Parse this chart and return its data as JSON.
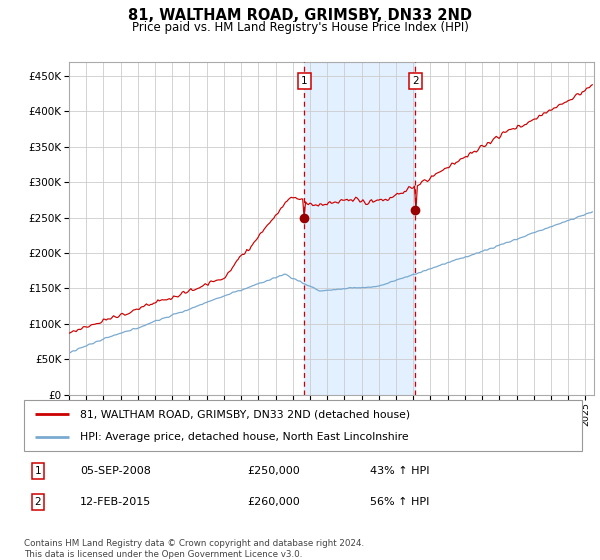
{
  "title": "81, WALTHAM ROAD, GRIMSBY, DN33 2ND",
  "subtitle": "Price paid vs. HM Land Registry's House Price Index (HPI)",
  "legend_line1": "81, WALTHAM ROAD, GRIMSBY, DN33 2ND (detached house)",
  "legend_line2": "HPI: Average price, detached house, North East Lincolnshire",
  "annotation1_date": "05-SEP-2008",
  "annotation1_price": "£250,000",
  "annotation1_hpi": "43% ↑ HPI",
  "annotation2_date": "12-FEB-2015",
  "annotation2_price": "£260,000",
  "annotation2_hpi": "56% ↑ HPI",
  "footnote": "Contains HM Land Registry data © Crown copyright and database right 2024.\nThis data is licensed under the Open Government Licence v3.0.",
  "sale1_year": 2008.67,
  "sale1_value": 250000,
  "sale2_year": 2015.12,
  "sale2_value": 260000,
  "red_line_color": "#cc0000",
  "blue_line_color": "#7aaad0",
  "shade_color": "#ddeeff",
  "dashed_color": "#cc0000",
  "dot_color": "#990000",
  "background_color": "#ffffff",
  "grid_color": "#cccccc",
  "ylim": [
    0,
    470000
  ],
  "xlim_start": 1995.0,
  "xlim_end": 2025.5
}
